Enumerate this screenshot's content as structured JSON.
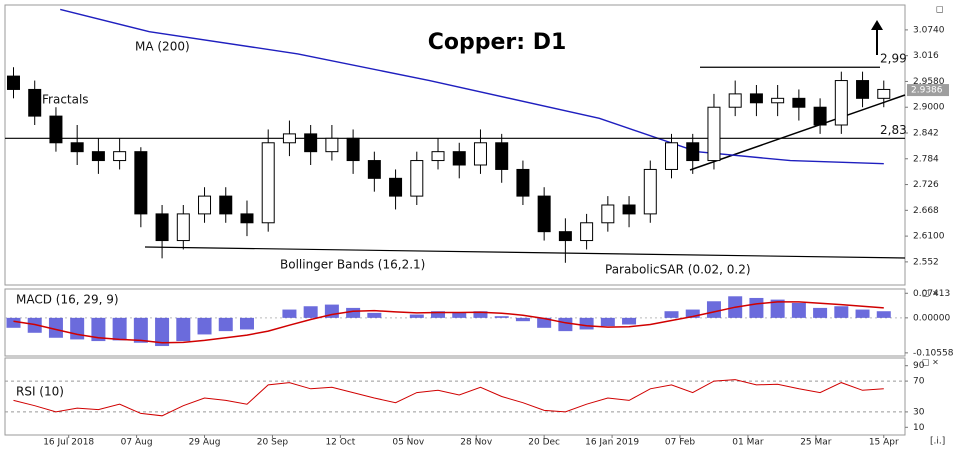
{
  "chart_data": [
    {
      "type": "candlestick",
      "title": "Copper: D1",
      "x": [
        2,
        7,
        12,
        17,
        22,
        27,
        32,
        37,
        42,
        47,
        52,
        57,
        62,
        67,
        72,
        77,
        82,
        87,
        92,
        97,
        102,
        107,
        112,
        117,
        122,
        127,
        132,
        137,
        142,
        147,
        152,
        157,
        162,
        167,
        172,
        177,
        182,
        187,
        192,
        197,
        202,
        207
      ],
      "open": [
        2.97,
        2.94,
        2.88,
        2.82,
        2.8,
        2.78,
        2.8,
        2.66,
        2.6,
        2.66,
        2.7,
        2.66,
        2.64,
        2.82,
        2.84,
        2.8,
        2.83,
        2.78,
        2.74,
        2.7,
        2.78,
        2.8,
        2.77,
        2.82,
        2.76,
        2.7,
        2.62,
        2.6,
        2.64,
        2.68,
        2.66,
        2.76,
        2.82,
        2.78,
        2.9,
        2.93,
        2.91,
        2.92,
        2.9,
        2.86,
        2.96,
        2.92
      ],
      "high": [
        2.99,
        2.96,
        2.9,
        2.86,
        2.83,
        2.83,
        2.81,
        2.68,
        2.68,
        2.72,
        2.72,
        2.69,
        2.85,
        2.87,
        2.86,
        2.86,
        2.85,
        2.8,
        2.76,
        2.8,
        2.83,
        2.82,
        2.85,
        2.84,
        2.78,
        2.72,
        2.65,
        2.66,
        2.7,
        2.7,
        2.78,
        2.84,
        2.84,
        2.93,
        2.96,
        2.95,
        2.95,
        2.94,
        2.92,
        2.98,
        2.98,
        2.96
      ],
      "low": [
        2.92,
        2.86,
        2.8,
        2.77,
        2.75,
        2.76,
        2.63,
        2.56,
        2.58,
        2.64,
        2.64,
        2.61,
        2.62,
        2.79,
        2.77,
        2.78,
        2.75,
        2.71,
        2.67,
        2.68,
        2.76,
        2.74,
        2.75,
        2.73,
        2.68,
        2.6,
        2.55,
        2.58,
        2.62,
        2.63,
        2.64,
        2.74,
        2.75,
        2.76,
        2.88,
        2.88,
        2.88,
        2.87,
        2.84,
        2.84,
        2.9,
        2.9
      ],
      "close": [
        2.94,
        2.88,
        2.82,
        2.8,
        2.78,
        2.8,
        2.66,
        2.6,
        2.66,
        2.7,
        2.66,
        2.64,
        2.82,
        2.84,
        2.8,
        2.83,
        2.78,
        2.74,
        2.7,
        2.78,
        2.8,
        2.77,
        2.82,
        2.76,
        2.7,
        2.62,
        2.6,
        2.64,
        2.68,
        2.66,
        2.76,
        2.82,
        2.78,
        2.9,
        2.93,
        2.91,
        2.92,
        2.9,
        2.86,
        2.96,
        2.92,
        2.94
      ],
      "up_color": "#ffffff",
      "down_color": "#000000",
      "xlim": [
        0,
        212
      ],
      "ylim": [
        2.5,
        3.13
      ],
      "yticks": [
        {
          "value": 3.074,
          "label": "3.0740"
        },
        3.016,
        {
          "value": 2.958,
          "label": "2.9580"
        },
        {
          "value": 2.9,
          "label": "2.9000"
        },
        2.842,
        2.784,
        2.726,
        2.668,
        {
          "value": 2.61,
          "label": "2.6100"
        },
        2.552
      ],
      "last_price": 2.9386,
      "ma": {
        "name": "MA (200)",
        "color": "#1f1fbf",
        "x": [
          13,
          34,
          69,
          100,
          140,
          163,
          185,
          207
        ],
        "values": [
          3.12,
          3.07,
          3.02,
          2.96,
          2.875,
          2.8,
          2.78,
          2.773
        ]
      },
      "levels": [
        {
          "value": 2.99,
          "label": "2,99"
        },
        {
          "value": 2.83,
          "label": "2,83"
        }
      ],
      "annotations": [
        "Fractals",
        "Bollinger Bands (16,2.1)",
        "ParabolicSAR (0.02, 0.2)"
      ]
    },
    {
      "type": "macd",
      "title": "MACD (16, 29, 9)",
      "x": [
        2,
        7,
        12,
        17,
        22,
        27,
        32,
        37,
        42,
        47,
        52,
        57,
        62,
        67,
        72,
        77,
        82,
        87,
        92,
        97,
        102,
        107,
        112,
        117,
        122,
        127,
        132,
        137,
        142,
        147,
        152,
        157,
        162,
        167,
        172,
        177,
        182,
        187,
        192,
        197,
        202,
        207
      ],
      "histogram": [
        -0.03,
        -0.045,
        -0.06,
        -0.065,
        -0.07,
        -0.068,
        -0.075,
        -0.085,
        -0.07,
        -0.05,
        -0.04,
        -0.035,
        0.0,
        0.025,
        0.035,
        0.04,
        0.03,
        0.015,
        0.0,
        0.01,
        0.02,
        0.015,
        0.02,
        0.005,
        -0.01,
        -0.03,
        -0.04,
        -0.035,
        -0.025,
        -0.02,
        0.0,
        0.02,
        0.025,
        0.05,
        0.065,
        0.06,
        0.055,
        0.045,
        0.03,
        0.035,
        0.025,
        0.02
      ],
      "signal": [
        -0.01,
        -0.02,
        -0.035,
        -0.05,
        -0.06,
        -0.065,
        -0.068,
        -0.075,
        -0.074,
        -0.068,
        -0.06,
        -0.052,
        -0.04,
        -0.022,
        -0.005,
        0.01,
        0.02,
        0.022,
        0.018,
        0.015,
        0.016,
        0.016,
        0.017,
        0.014,
        0.008,
        -0.002,
        -0.015,
        -0.024,
        -0.028,
        -0.027,
        -0.02,
        -0.008,
        0.004,
        0.018,
        0.032,
        0.042,
        0.048,
        0.048,
        0.044,
        0.04,
        0.035,
        0.03
      ],
      "bar_color": "#3a3ad0",
      "line_color": "#d00000",
      "xlim": [
        0,
        212
      ],
      "ylim": [
        -0.115,
        0.087
      ],
      "yticks": [
        0.07413,
        {
          "value": 0,
          "label": "0.00000"
        },
        -0.10558
      ]
    },
    {
      "type": "line",
      "title": "RSI (10)",
      "x": [
        2,
        7,
        12,
        17,
        22,
        27,
        32,
        37,
        42,
        47,
        52,
        57,
        62,
        67,
        72,
        77,
        82,
        87,
        92,
        97,
        102,
        107,
        112,
        117,
        122,
        127,
        132,
        137,
        142,
        147,
        152,
        157,
        162,
        167,
        172,
        177,
        182,
        187,
        192,
        197,
        202,
        207
      ],
      "values": [
        45,
        38,
        30,
        35,
        33,
        40,
        28,
        25,
        38,
        48,
        45,
        40,
        65,
        68,
        60,
        62,
        55,
        48,
        42,
        55,
        58,
        52,
        62,
        50,
        42,
        32,
        30,
        40,
        48,
        45,
        60,
        65,
        55,
        70,
        72,
        65,
        66,
        60,
        55,
        68,
        58,
        60
      ],
      "color": "#d00000",
      "xlim": [
        0,
        212
      ],
      "ylim": [
        0,
        100
      ],
      "yticks": [
        90,
        70,
        30,
        10
      ],
      "xticks": [
        {
          "value": 15,
          "label": "16 Jul 2018"
        },
        {
          "value": 31,
          "label": "07 Aug"
        },
        {
          "value": 47,
          "label": "29 Aug"
        },
        {
          "value": 63,
          "label": "20 Sep"
        },
        {
          "value": 79,
          "label": "12 Oct"
        },
        {
          "value": 95,
          "label": "05 Nov"
        },
        {
          "value": 111,
          "label": "28 Nov"
        },
        {
          "value": 127,
          "label": "20 Dec"
        },
        {
          "value": 143,
          "label": "16 Jan 2019"
        },
        {
          "value": 159,
          "label": "07 Feb"
        },
        {
          "value": 175,
          "label": "01 Mar"
        },
        {
          "value": 191,
          "label": "25 Mar"
        },
        {
          "value": 207,
          "label": "15 Apr"
        }
      ]
    }
  ],
  "corner_label": "[.i.]"
}
